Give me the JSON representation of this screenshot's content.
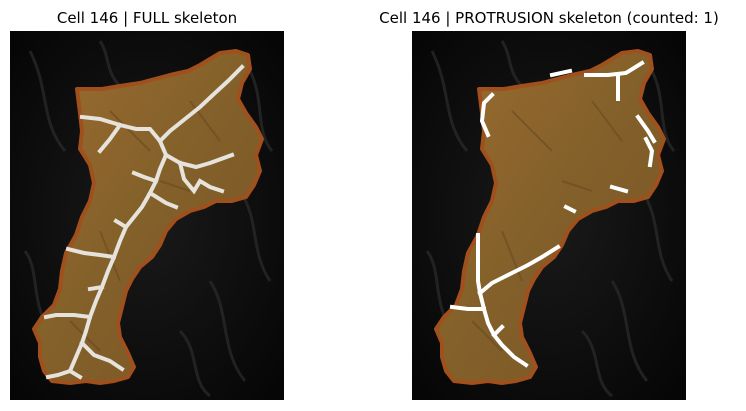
{
  "figure": {
    "panels": [
      {
        "title": "Cell 146 | FULL skeleton",
        "kind": "full-skeleton"
      },
      {
        "title": "Cell 146 | PROTRUSION skeleton (counted: 1)",
        "kind": "protrusion-skeleton"
      }
    ],
    "colors": {
      "background": "#040404",
      "cell_fill": "#8a6128",
      "cell_outline": "#a0501c",
      "skeleton_full": "#e6e3dc",
      "skeleton_protrusion": "#ffffff"
    }
  }
}
